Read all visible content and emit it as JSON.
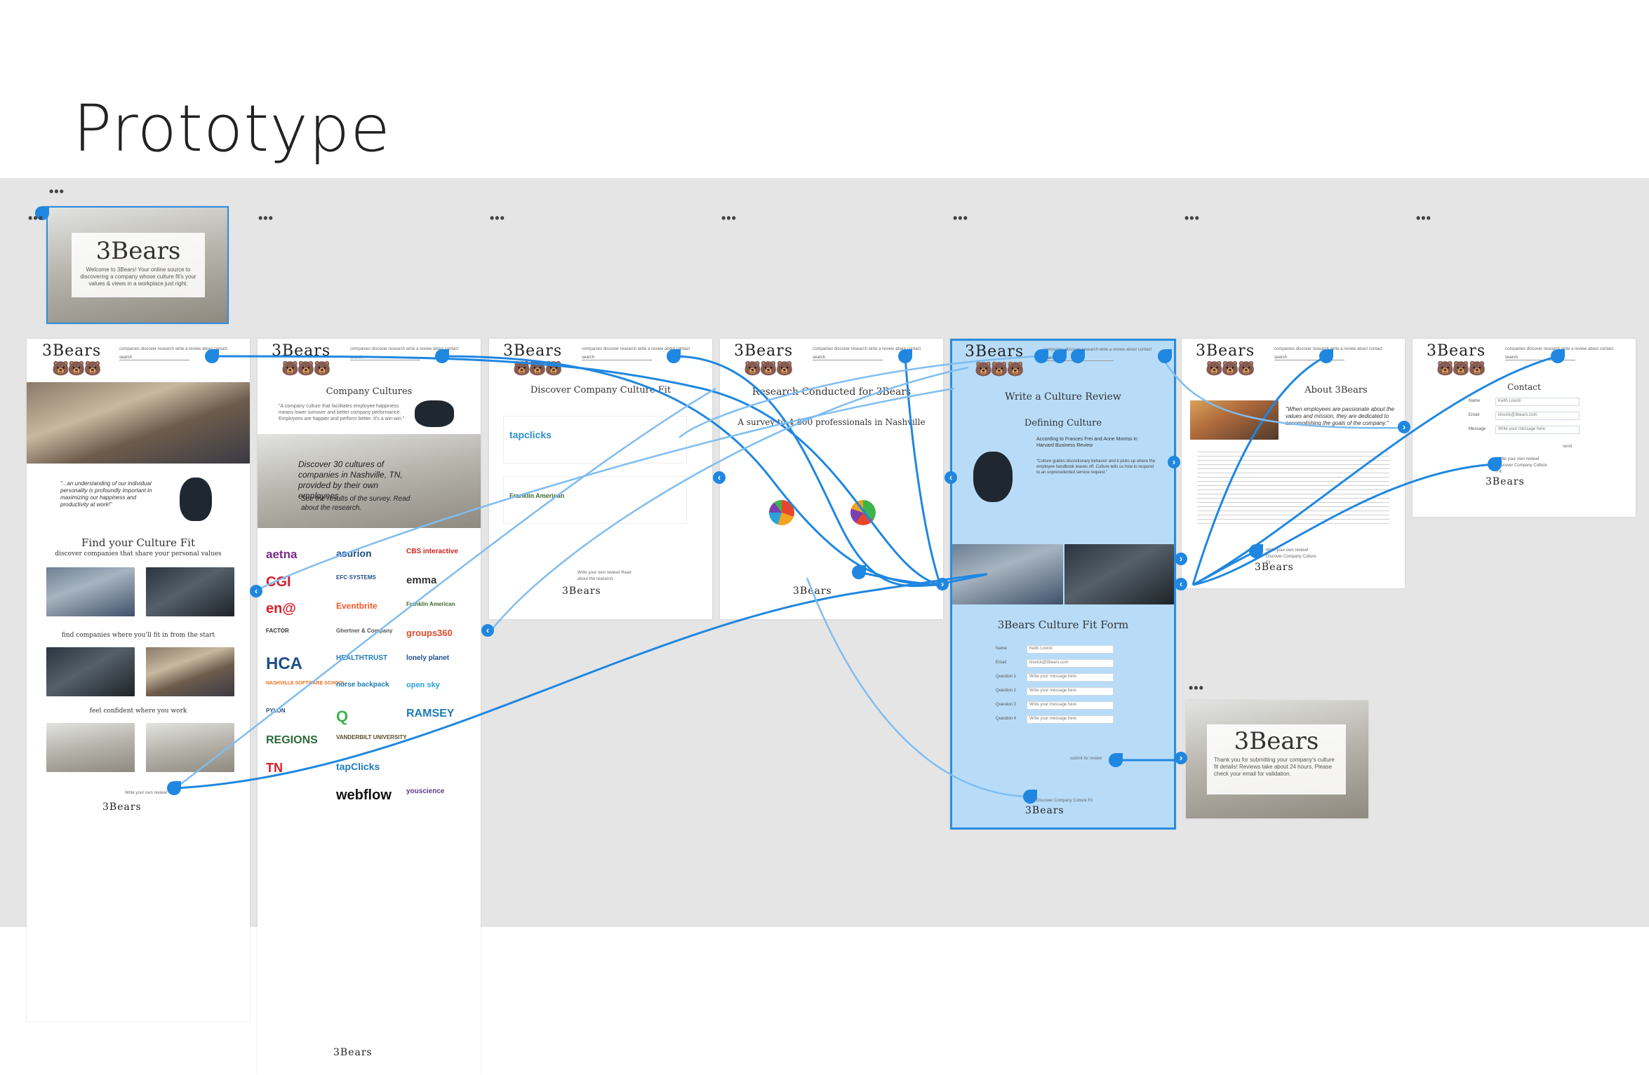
{
  "slide": {
    "title": "Prototype"
  },
  "artboard_menu": "•••",
  "brand": {
    "logo": "3Bears",
    "bears": "🐻🐻🐻"
  },
  "nav": {
    "links": "companies   discover   research   write a review   about   contact",
    "search_placeholder": "search"
  },
  "welcome": {
    "logo": "3Bears",
    "text": "Welcome to 3Bears! Your online source to discovering a company whose culture fit's your values & views in a workplace just right."
  },
  "home": {
    "quote": "\"...an understanding of our individual personality is profoundly important in maximizing our happiness and productivity at work!\"",
    "headline": "Find your Culture Fit",
    "sub1": "discover companies that share your personal values",
    "sub2": "find companies where you'll fit in from the start",
    "sub3": "feel confident where you work",
    "footer_link": "Write your own review!"
  },
  "companies": {
    "heading": "Company Cultures",
    "intro": "\"A company culture that facilitates employee happiness means lower turnover and better company performance. Employees are happier and perform better. It's a win-win.\"",
    "hero_text": "Discover 30 cultures of companies in Nashville, TN, provided by their own employees.",
    "hero_sub": "See the results of the survey. Read about the research.",
    "logos": [
      "aetna",
      "asurion",
      "CBS interactive",
      "CGI",
      "EFC·SYSTEMS",
      "emma",
      "en@",
      "Eventbrite",
      "Franklin American",
      "FACTOR",
      "Ghertner & Company",
      "groups360",
      "HCA",
      "HEALTHTRUST",
      "lonely planet",
      "NASHVILLE SOFTWARE SCHOOL",
      "nurse backpack",
      "open sky",
      "PYLON",
      "Q",
      "RAMSEY",
      "REGIONS",
      "VANDERBILT UNIVERSITY",
      "TN",
      "tapClicks",
      "webflow",
      "youscience"
    ]
  },
  "discover": {
    "heading": "Discover Company Culture Fit",
    "company1": "tapclicks",
    "company2": "Franklin American",
    "footer": "Write your own review! Read about the research."
  },
  "research": {
    "heading": "Research Conducted for 3Bears",
    "subheading": "A survey to 4,800 professionals in Nashville"
  },
  "review": {
    "heading": "Write a Culture Review",
    "subheading": "Defining Culture",
    "cite": "According to Frances Frei and Anne Morriss in Harvard Business Review",
    "quote": "\"Culture guides discretionary behavior and it picks up where the employee handbook leaves off. Culture tells us how to respond to an unprecedented service request.\"",
    "form_title": "3Bears Culture Fit Form",
    "labels": [
      "Name",
      "Email",
      "Question 1",
      "Question 2",
      "Question 3",
      "Question 4"
    ],
    "values": [
      "Keith Lovick",
      "klovick@3bears.com",
      "Write your message here",
      "Write your message here",
      "Write your message here",
      "Write your message here"
    ],
    "submit": "submit for review",
    "footer": "Discover Company Culture Fit"
  },
  "about": {
    "heading": "About 3Bears",
    "quote": "\"When employees are passionate about the values and mission, they are dedicated to accomplishing the goals of the company.\"",
    "footer": "Write your own review! Discover Company Culture Fit"
  },
  "contact": {
    "heading": "Contact",
    "labels": [
      "Name",
      "Email",
      "Message"
    ],
    "values": [
      "Keith Lovick",
      "klovick@3bears.com",
      "Write your message here"
    ],
    "send": "send",
    "footer": "Write your own review! Discover Company Culture Fit"
  },
  "thanks": {
    "logo": "3Bears",
    "text": "Thank you for submitting your company's culture fit details! Reviews take about 24 hours. Please check your email for validation."
  }
}
